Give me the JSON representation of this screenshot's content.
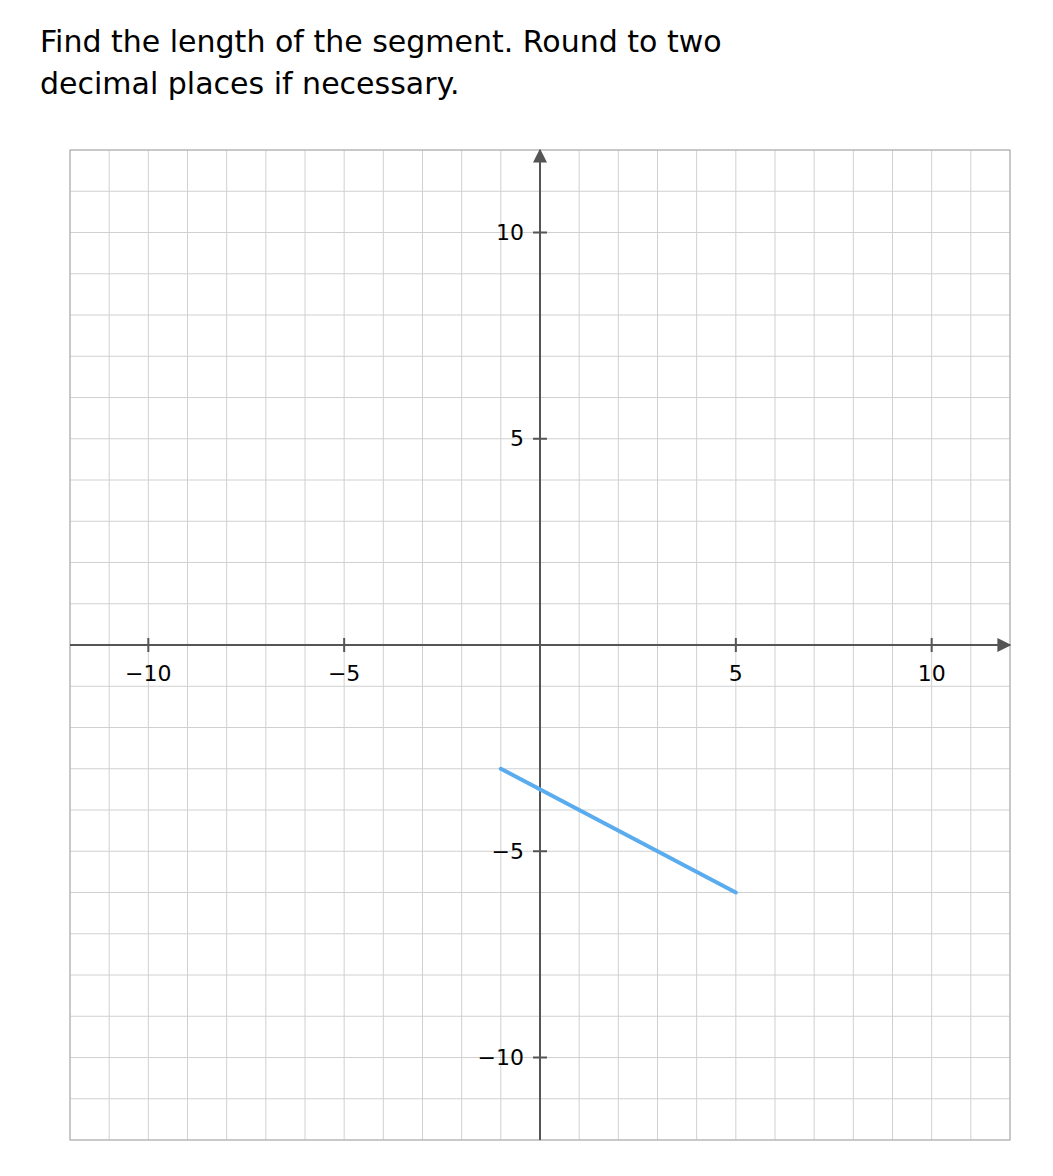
{
  "chart_data": {
    "type": "line",
    "title": "Find the length of the segment. Round to two",
    "subtitle": "decimal places if necessary.",
    "x": [
      -1,
      5
    ],
    "values": [
      -3,
      -6
    ],
    "color": "#5aacee",
    "xlim": [
      -12,
      12
    ],
    "ylim": [
      -12,
      12
    ],
    "xticks": [
      {
        "value": -10,
        "label": "−10"
      },
      {
        "value": -5,
        "label": "−5"
      },
      5,
      10
    ],
    "yticks": [
      {
        "value": -10,
        "label": "−10"
      },
      {
        "value": -5,
        "label": "−5"
      },
      5,
      10
    ],
    "grid": true
  }
}
